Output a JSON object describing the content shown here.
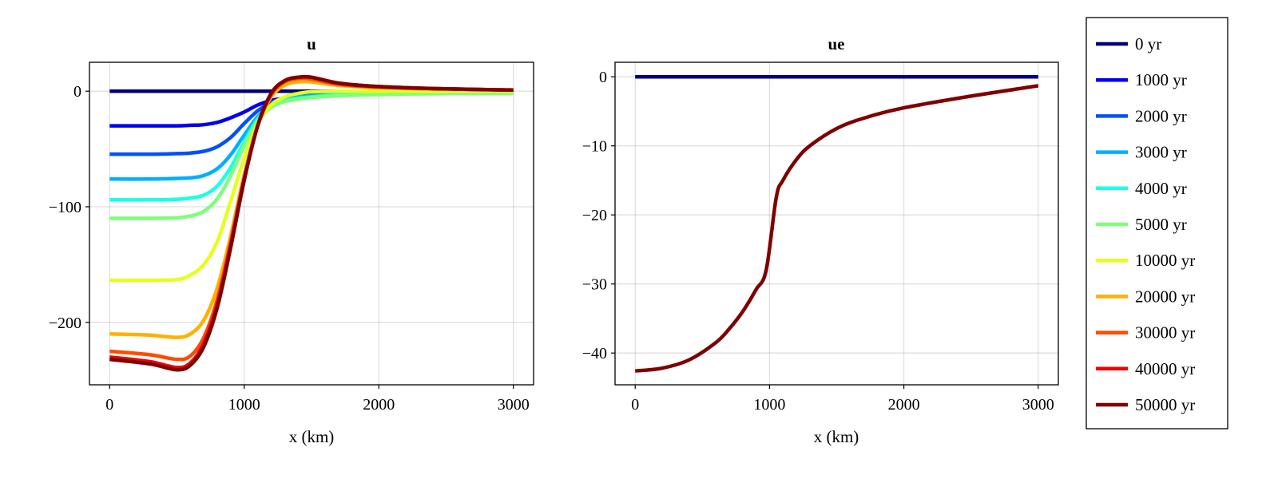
{
  "chart_data": [
    {
      "type": "line",
      "title": "u",
      "xlabel": "x (km)",
      "ylabel": "",
      "xlim": [
        -150,
        3150
      ],
      "ylim": [
        -254,
        25
      ],
      "xticks": [
        0,
        1000,
        2000,
        3000
      ],
      "xtick_labels": [
        "0",
        "1000",
        "2000",
        "3000"
      ],
      "yticks": [
        0,
        -100,
        -200
      ],
      "ytick_labels": [
        "0",
        "−100",
        "−200"
      ],
      "grid": true,
      "x": [
        0,
        300,
        500,
        600,
        700,
        800,
        900,
        1000,
        1100,
        1200,
        1300,
        1400,
        1500,
        1700,
        2000,
        2500,
        3000
      ],
      "series": [
        {
          "name": "0 yr",
          "color": "#00007f",
          "values": [
            0,
            0,
            0,
            0,
            0,
            0,
            0,
            0,
            0,
            0,
            0,
            0,
            0,
            0,
            0,
            0,
            0
          ]
        },
        {
          "name": "1000 yr",
          "color": "#0000f0",
          "values": [
            -30,
            -30,
            -30,
            -29.5,
            -29,
            -27,
            -23,
            -18,
            -12,
            -8,
            -6,
            -4,
            -3,
            -1.5,
            -0.8,
            -0.3,
            -0.2
          ]
        },
        {
          "name": "2000 yr",
          "color": "#0050ff",
          "values": [
            -54.5,
            -54.5,
            -54,
            -53.5,
            -52,
            -48,
            -40,
            -28,
            -17,
            -10,
            -6,
            -4,
            -3,
            -2,
            -1,
            -0.6,
            -0.5
          ]
        },
        {
          "name": "3000 yr",
          "color": "#00b0ff",
          "values": [
            -76,
            -76,
            -75.5,
            -75,
            -73,
            -67,
            -55,
            -38,
            -22,
            -12,
            -7,
            -5,
            -4,
            -2.5,
            -1.5,
            -1,
            -1
          ]
        },
        {
          "name": "4000 yr",
          "color": "#1affe6",
          "values": [
            -94,
            -94,
            -93.5,
            -92.5,
            -90,
            -82,
            -66,
            -44,
            -24,
            -13,
            -8,
            -6,
            -5,
            -3,
            -2,
            -1.5,
            -1.5
          ]
        },
        {
          "name": "5000 yr",
          "color": "#7dff7a",
          "values": [
            -110,
            -110,
            -109.5,
            -108,
            -104,
            -93,
            -73,
            -47,
            -26,
            -14,
            -9,
            -7,
            -5.5,
            -4,
            -3,
            -2,
            -2
          ]
        },
        {
          "name": "10000 yr",
          "color": "#e6ff1a",
          "values": [
            -163.5,
            -163.5,
            -163,
            -159,
            -150,
            -130,
            -95,
            -58,
            -28,
            -12,
            -5,
            -2,
            -0.5,
            0,
            0,
            0,
            0
          ]
        },
        {
          "name": "20000 yr",
          "color": "#ffb000",
          "values": [
            -210,
            -211,
            -213,
            -210,
            -198,
            -170,
            -125,
            -72,
            -30,
            -5,
            5,
            8,
            8,
            5,
            3,
            1.5,
            1
          ]
        },
        {
          "name": "30000 yr",
          "color": "#ff4a00",
          "values": [
            -225,
            -228,
            -232,
            -229,
            -213,
            -180,
            -130,
            -75,
            -30,
            -3,
            8,
            11,
            10.5,
            6,
            3.5,
            2,
            1
          ]
        },
        {
          "name": "40000 yr",
          "color": "#ee0000",
          "values": [
            -230,
            -234,
            -239,
            -235,
            -218,
            -184,
            -133,
            -76,
            -30,
            -2,
            9,
            12,
            12,
            7,
            4,
            2,
            1
          ]
        },
        {
          "name": "50000 yr",
          "color": "#7f0000",
          "values": [
            -232,
            -236,
            -241,
            -237,
            -221,
            -187,
            -135,
            -77,
            -30,
            -2,
            9,
            12,
            12,
            7,
            4,
            2,
            1
          ]
        }
      ]
    },
    {
      "type": "line",
      "title": "ue",
      "xlabel": "x (km)",
      "ylabel": "",
      "xlim": [
        -150,
        3150
      ],
      "ylim": [
        -44.6,
        2.1
      ],
      "xticks": [
        0,
        1000,
        2000,
        3000
      ],
      "xtick_labels": [
        "0",
        "1000",
        "2000",
        "3000"
      ],
      "yticks": [
        0,
        -10,
        -20,
        -30,
        -40
      ],
      "ytick_labels": [
        "0",
        "−10",
        "−20",
        "−30",
        "−40"
      ],
      "grid": true,
      "series": [
        {
          "name": "0 yr",
          "color": "#00007f",
          "x": [
            0,
            3000
          ],
          "values": [
            0,
            0
          ]
        },
        {
          "name": "50000 yr",
          "color": "#7f0000",
          "x": [
            0,
            200,
            400,
            600,
            700,
            800,
            900,
            975,
            1050,
            1100,
            1200,
            1300,
            1500,
            1700,
            2000,
            2500,
            3000
          ],
          "values": [
            -42.6,
            -42.2,
            -41,
            -38.5,
            -36.5,
            -34,
            -30.8,
            -28,
            -17.5,
            -15,
            -12,
            -10,
            -7.5,
            -6,
            -4.5,
            -2.8,
            -1.3
          ]
        }
      ]
    }
  ],
  "legend": {
    "placement": "right",
    "entries": [
      {
        "label": "0 yr",
        "color": "#00007f"
      },
      {
        "label": "1000 yr",
        "color": "#0000f0"
      },
      {
        "label": "2000 yr",
        "color": "#0050ff"
      },
      {
        "label": "3000 yr",
        "color": "#00b0ff"
      },
      {
        "label": "4000 yr",
        "color": "#1affe6"
      },
      {
        "label": "5000 yr",
        "color": "#7dff7a"
      },
      {
        "label": "10000 yr",
        "color": "#e6ff1a"
      },
      {
        "label": "20000 yr",
        "color": "#ffb000"
      },
      {
        "label": "30000 yr",
        "color": "#ff4a00"
      },
      {
        "label": "40000 yr",
        "color": "#ee0000"
      },
      {
        "label": "50000 yr",
        "color": "#7f0000"
      }
    ]
  }
}
